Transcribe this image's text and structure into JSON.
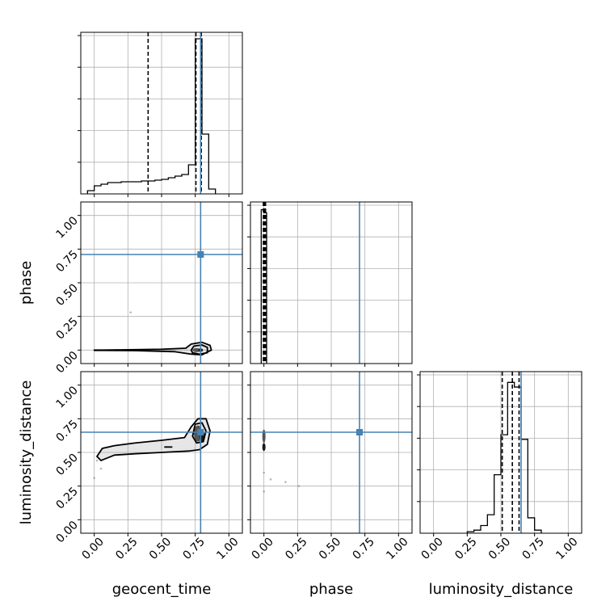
{
  "chart_data": {
    "type": "corner",
    "parameters": [
      "geocent_time",
      "phase",
      "luminosity_distance"
    ],
    "axis_range": [
      -0.1,
      1.1
    ],
    "ticks": [
      0.0,
      0.25,
      0.5,
      0.75,
      1.0
    ],
    "tick_labels": [
      "0.00",
      "0.25",
      "0.50",
      "0.75",
      "1.00"
    ],
    "xlabels": [
      "geocent_time",
      "phase",
      "luminosity_distance"
    ],
    "ylabels": [
      "",
      "phase",
      "luminosity_distance"
    ],
    "grid": true,
    "truths": [
      0.79,
      0.71,
      0.65
    ],
    "truth_color": "#4682b4",
    "line_color": "#000000",
    "hist_1d": [
      {
        "parameter": "geocent_time",
        "bin_edges": [
          -0.05,
          0.0,
          0.05,
          0.1,
          0.15,
          0.2,
          0.25,
          0.3,
          0.35,
          0.4,
          0.45,
          0.5,
          0.55,
          0.6,
          0.65,
          0.7,
          0.75,
          0.8,
          0.85,
          0.9
        ],
        "heights": [
          0.02,
          0.05,
          0.06,
          0.07,
          0.07,
          0.075,
          0.075,
          0.075,
          0.08,
          0.08,
          0.085,
          0.09,
          0.1,
          0.11,
          0.12,
          0.18,
          0.96,
          0.37,
          0.03
        ],
        "quantiles": [
          0.4,
          0.755,
          0.795
        ],
        "ymax": 1.0
      },
      {
        "parameter": "phase",
        "bin_edges": [
          -0.02,
          0.0,
          0.02
        ],
        "heights": [
          1.0,
          0.98
        ],
        "quantiles": [
          -0.004,
          0.004,
          0.012
        ],
        "ymax": 1.05
      },
      {
        "parameter": "luminosity_distance",
        "bin_edges": [
          0.25,
          0.3,
          0.35,
          0.4,
          0.45,
          0.5,
          0.55,
          0.6,
          0.65,
          0.7,
          0.75,
          0.8
        ],
        "heights": [
          0.01,
          0.02,
          0.05,
          0.12,
          0.38,
          0.64,
          0.98,
          0.95,
          0.61,
          0.1,
          0.02
        ],
        "quantiles": [
          0.51,
          0.585,
          0.635
        ],
        "ymax": 1.05
      }
    ],
    "hist_2d": [
      {
        "x": "geocent_time",
        "y": "phase",
        "contours": [
          [
            [
              0.0,
              0.0
            ],
            [
              0.2,
              0.002
            ],
            [
              0.5,
              0.006
            ],
            [
              0.68,
              0.014
            ],
            [
              0.72,
              0.045
            ],
            [
              0.8,
              0.058
            ],
            [
              0.86,
              0.035
            ],
            [
              0.87,
              0.0
            ],
            [
              0.8,
              -0.035
            ],
            [
              0.72,
              -0.03
            ],
            [
              0.6,
              -0.012
            ],
            [
              0.3,
              -0.004
            ],
            [
              0.0,
              -0.002
            ]
          ],
          [
            [
              0.72,
              0.0
            ],
            [
              0.74,
              0.03
            ],
            [
              0.8,
              0.038
            ],
            [
              0.84,
              0.02
            ],
            [
              0.84,
              -0.02
            ],
            [
              0.78,
              -0.03
            ],
            [
              0.73,
              -0.02
            ]
          ]
        ],
        "dense_cores": [
          [
            0.76,
            0.0,
            0.03,
            0.015
          ],
          [
            0.79,
            0.0,
            0.018,
            0.01
          ]
        ],
        "outliers": [
          [
            0.27,
            0.28
          ],
          [
            0.16,
            0.0
          ],
          [
            0.48,
            0.0
          ],
          [
            0.37,
            0.0
          ]
        ]
      },
      {
        "x": "geocent_time",
        "y": "luminosity_distance",
        "contours": [
          [
            [
              0.02,
              0.47
            ],
            [
              0.06,
              0.53
            ],
            [
              0.15,
              0.55
            ],
            [
              0.3,
              0.57
            ],
            [
              0.5,
              0.59
            ],
            [
              0.67,
              0.61
            ],
            [
              0.72,
              0.69
            ],
            [
              0.77,
              0.75
            ],
            [
              0.83,
              0.75
            ],
            [
              0.86,
              0.66
            ],
            [
              0.84,
              0.56
            ],
            [
              0.78,
              0.52
            ],
            [
              0.7,
              0.51
            ],
            [
              0.5,
              0.5
            ],
            [
              0.3,
              0.49
            ],
            [
              0.15,
              0.48
            ],
            [
              0.05,
              0.44
            ]
          ],
          [
            [
              0.73,
              0.62
            ],
            [
              0.75,
              0.71
            ],
            [
              0.8,
              0.72
            ],
            [
              0.83,
              0.66
            ],
            [
              0.81,
              0.58
            ],
            [
              0.76,
              0.57
            ]
          ],
          [
            [
              0.52,
              0.54
            ],
            [
              0.58,
              0.54
            ]
          ]
        ],
        "dense_cores": [
          [
            0.77,
            0.64,
            0.03,
            0.06
          ],
          [
            0.8,
            0.62,
            0.02,
            0.04
          ]
        ],
        "outliers": [
          [
            0.05,
            0.38
          ],
          [
            0.02,
            0.44
          ],
          [
            0.0,
            0.31
          ]
        ]
      },
      {
        "x": "phase",
        "y": "luminosity_distance",
        "contours": [],
        "dense_cores": [
          [
            0.0,
            0.62,
            0.012,
            0.05
          ],
          [
            0.0,
            0.54,
            0.008,
            0.03
          ]
        ],
        "outliers": [
          [
            0.05,
            0.3
          ],
          [
            0.16,
            0.28
          ],
          [
            0.26,
            0.25
          ],
          [
            0.0,
            0.21
          ],
          [
            0.0,
            0.35
          ]
        ]
      }
    ]
  }
}
